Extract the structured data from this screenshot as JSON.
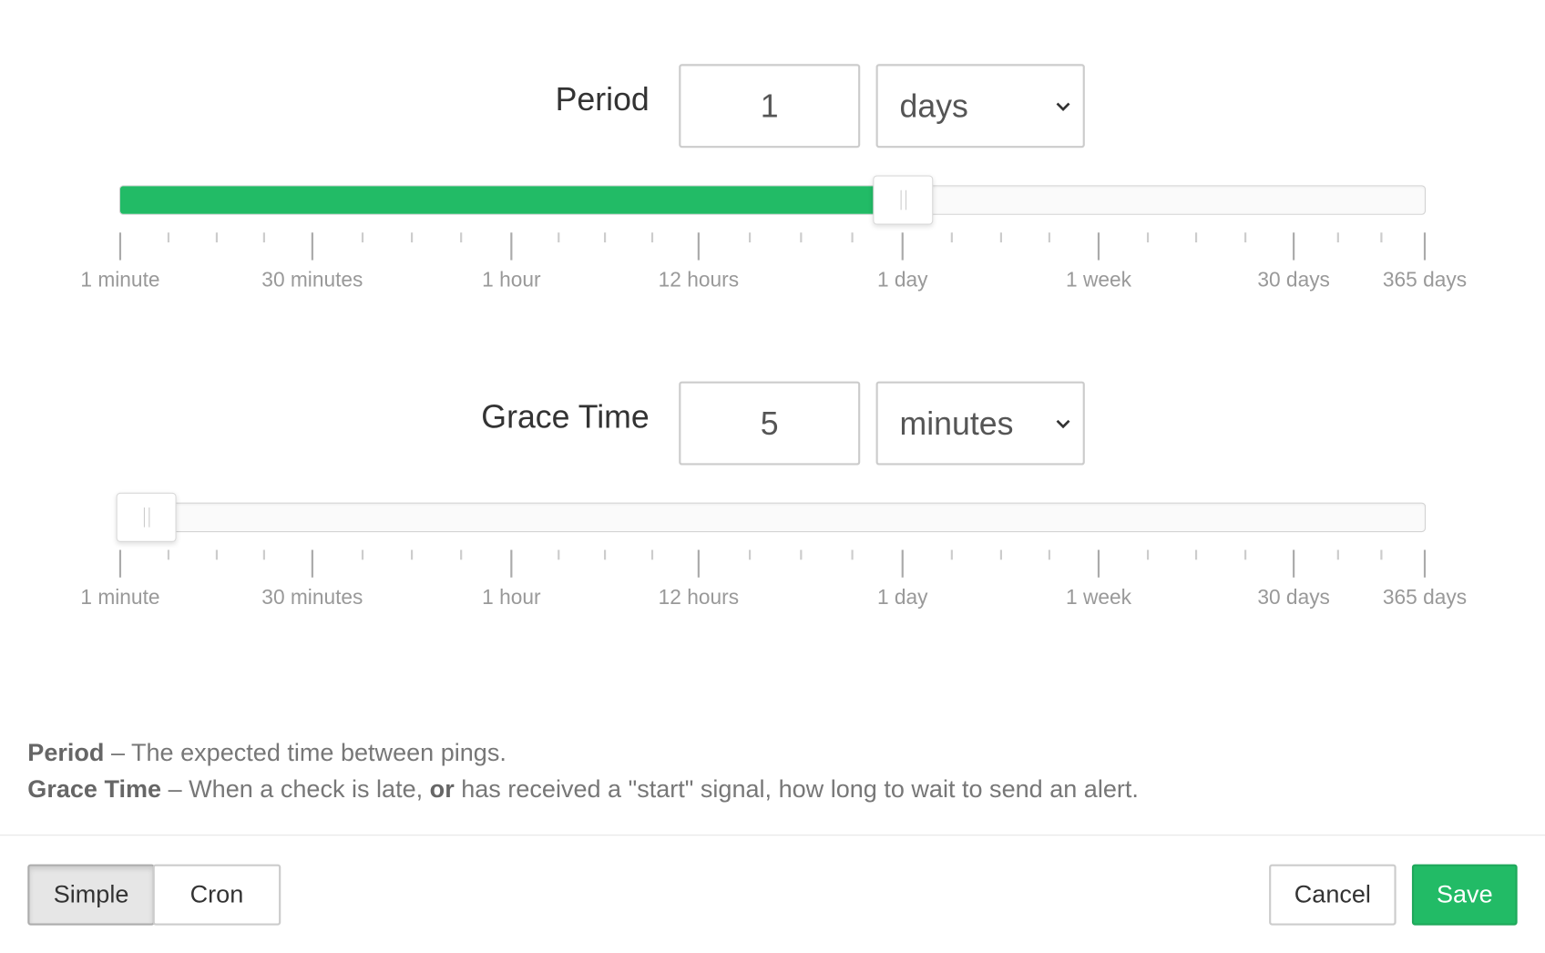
{
  "period": {
    "label": "Period",
    "value": "1",
    "unit": "days",
    "slider_value": "1 day"
  },
  "grace": {
    "label": "Grace Time",
    "value": "5",
    "unit": "minutes",
    "slider_value": "5 minutes"
  },
  "scale": {
    "major": [
      "1 minute",
      "30 minutes",
      "1 hour",
      "12 hours",
      "1 day",
      "1 week",
      "30 days",
      "365 days"
    ]
  },
  "help": {
    "period_term": "Period",
    "period_text": " – The expected time between pings.",
    "grace_term": "Grace Time",
    "grace_text1": " – When a check is late, ",
    "grace_or": "or",
    "grace_text2": " has received a \"start\" signal, how long to wait to send an alert."
  },
  "footer": {
    "simple": "Simple",
    "cron": "Cron",
    "cancel": "Cancel",
    "save": "Save"
  },
  "colors": {
    "accent": "#22bb66"
  },
  "icons": {
    "select": "chevron-down-icon"
  }
}
